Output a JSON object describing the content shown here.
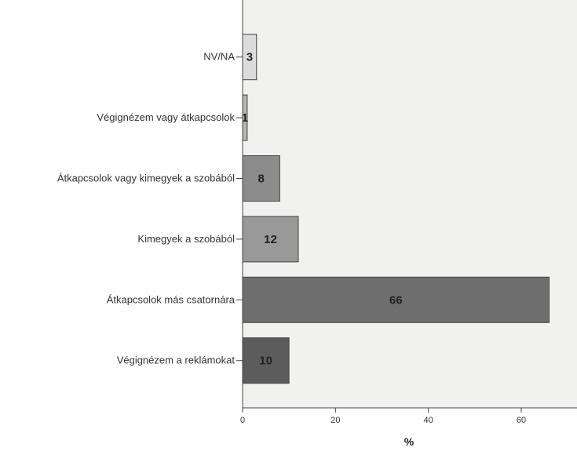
{
  "chart_data": {
    "type": "bar",
    "orientation": "horizontal",
    "categories": [
      "NV/NA",
      "Végignézem vagy átkapcsolok",
      "Átkapcsolok vagy kimegyek a szobából",
      "Kimegyek a szobából",
      "Átkapcsolok más csatornára",
      "Végignézem a reklámokat"
    ],
    "values": [
      3,
      1,
      8,
      12,
      66,
      10
    ],
    "data_labels": [
      "3",
      "1",
      "8",
      "12",
      "66",
      "10"
    ],
    "bar_colors": [
      "#dcdcdc",
      "#b4b4b4",
      "#8c8c8c",
      "#999999",
      "#6e6e6e",
      "#5c5c5c"
    ],
    "plot_background": "#f1f1ef",
    "xlabel": "%",
    "xlim": [
      0,
      72
    ],
    "xticks": [
      0,
      20,
      40,
      60
    ],
    "xtick_labels": [
      "0",
      "20",
      "40",
      "60"
    ],
    "grid": false,
    "legend": "none"
  }
}
